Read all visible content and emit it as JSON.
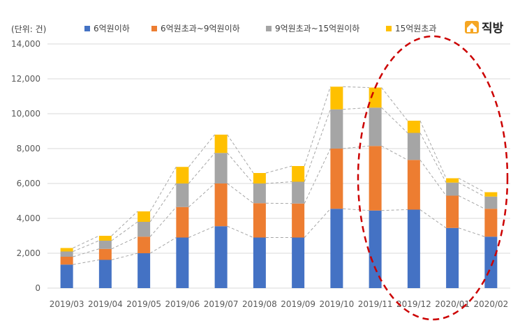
{
  "unit_label": "(단위: 건)",
  "logo": {
    "text": "직방",
    "icon": "house-icon",
    "color": "#f5a623"
  },
  "highlight_color": "#cc0000",
  "chart_data": {
    "type": "bar",
    "stacked": true,
    "categories": [
      "2019/03",
      "2019/04",
      "2019/05",
      "2019/06",
      "2019/07",
      "2019/08",
      "2019/09",
      "2019/10",
      "2019/11",
      "2019/12",
      "2020/01",
      "2020/02"
    ],
    "series": [
      {
        "name": "6억원이하",
        "color": "#4472c4",
        "values": [
          1350,
          1620,
          2000,
          2900,
          3550,
          2900,
          2900,
          4550,
          4450,
          4500,
          3450,
          2950
        ]
      },
      {
        "name": "6억원초과~9억원이하",
        "color": "#ed7d31",
        "values": [
          450,
          630,
          950,
          1750,
          2450,
          1970,
          1950,
          3450,
          3700,
          2850,
          1850,
          1600
        ]
      },
      {
        "name": "9억원초과~15억원이하",
        "color": "#a5a5a5",
        "values": [
          300,
          470,
          850,
          1350,
          1750,
          1130,
          1250,
          2250,
          2200,
          1550,
          750,
          700
        ]
      },
      {
        "name": "15억원초과",
        "color": "#ffc000",
        "values": [
          200,
          280,
          600,
          950,
          1050,
          600,
          900,
          1300,
          1150,
          700,
          250,
          250
        ]
      }
    ],
    "ylim": [
      0,
      14000
    ],
    "yticks": [
      "0",
      "2,000",
      "4,000",
      "6,000",
      "8,000",
      "10,000",
      "12,000",
      "14,000"
    ],
    "ytick_values": [
      0,
      2000,
      4000,
      6000,
      8000,
      10000,
      12000,
      14000
    ],
    "grid": true,
    "legend_position": "top",
    "annotations": [
      "dashed lines connecting stacked segment tops",
      "red dashed ellipse highlighting 2019/11 to 2020/02"
    ]
  }
}
